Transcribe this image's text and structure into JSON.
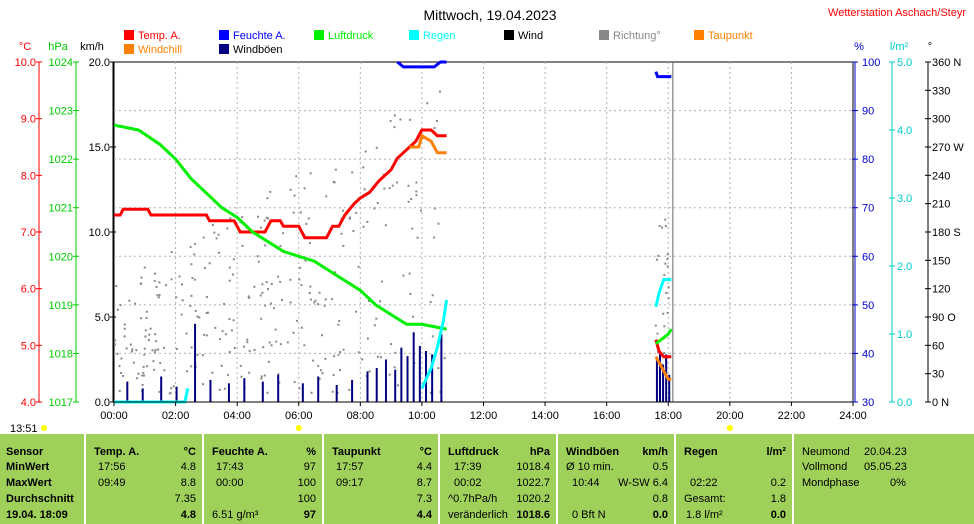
{
  "chart_data": {
    "type": "line",
    "title": "Mittwoch, 19.04.2023",
    "station": "Wetterstation Aschach/Steyr",
    "x_ticks": [
      "00:00",
      "02:00",
      "04:00",
      "06:00",
      "08:00",
      "10:00",
      "12:00",
      "14:00",
      "16:00",
      "18:00",
      "20:00",
      "22:00",
      "24:00"
    ],
    "time_marker": "13:51",
    "axes": {
      "temp": {
        "unit": "°C",
        "range": [
          4.0,
          10.0
        ],
        "ticks": [
          "10.0",
          "9.0",
          "8.0",
          "7.0",
          "6.0",
          "5.0",
          "4.0"
        ],
        "color": "#ff0000"
      },
      "pressure": {
        "unit": "hPa",
        "range": [
          1017,
          1024
        ],
        "ticks": [
          "1024",
          "1023",
          "1022",
          "1021",
          "1020",
          "1019",
          "1018",
          "1017"
        ],
        "color": "#00cc00"
      },
      "wind": {
        "unit": "km/h",
        "range": [
          0,
          20
        ],
        "ticks": [
          "20.0",
          "15.0",
          "10.0",
          "5.0",
          "0.0"
        ],
        "color": "#000000"
      },
      "humidity": {
        "unit": "%",
        "range": [
          30,
          100
        ],
        "ticks": [
          "100",
          "90",
          "80",
          "70",
          "60",
          "50",
          "40",
          "30"
        ],
        "color": "#0000cc"
      },
      "rain": {
        "unit": "l/m²",
        "range": [
          0,
          5
        ],
        "ticks": [
          "5.0",
          "4.0",
          "3.0",
          "2.0",
          "1.0",
          "0.0"
        ],
        "color": "#00cccc"
      },
      "direction": {
        "unit": "°",
        "ticks": [
          "360 N",
          "330",
          "300",
          "270 W",
          "240",
          "210",
          "180 S",
          "150",
          "120",
          "90 O",
          "60",
          "30",
          "0 N"
        ],
        "color": "#000000"
      }
    },
    "legend": [
      {
        "name": "Temp. A.",
        "color": "#ff0000"
      },
      {
        "name": "Feuchte A.",
        "color": "#0000ff"
      },
      {
        "name": "Luftdruck",
        "color": "#00ee00"
      },
      {
        "name": "Regen",
        "color": "#00ffff"
      },
      {
        "name": "Wind",
        "color": "#000000"
      },
      {
        "name": "Richtung°",
        "color": "#888888"
      },
      {
        "name": "Taupunkt",
        "color": "#ff8000"
      },
      {
        "name": "Windchill",
        "color": "#ff8000"
      },
      {
        "name": "Windböen",
        "color": "#000080"
      }
    ],
    "series": [
      {
        "name": "Temp. A.",
        "color": "#ff0000",
        "x": [
          0,
          0.2,
          0.3,
          1.1,
          1.2,
          2.3,
          2.4,
          3.0,
          3.1,
          3.9,
          4.1,
          4.9,
          5.1,
          5.4,
          5.5,
          6.0,
          6.2,
          6.9,
          7.1,
          7.3,
          7.5,
          7.8,
          8.0,
          8.3,
          8.6,
          8.8,
          9.0,
          9.2,
          9.4,
          9.6,
          9.8,
          10.0,
          10.3,
          10.5,
          10.8,
          17.6,
          17.7,
          17.85,
          18.0,
          18.1
        ],
        "y": [
          7.3,
          7.3,
          7.4,
          7.4,
          7.3,
          7.3,
          7.3,
          7.3,
          7.2,
          7.2,
          7.0,
          7.0,
          7.2,
          7.2,
          7.1,
          7.1,
          6.9,
          6.9,
          7.1,
          7.1,
          7.3,
          7.5,
          7.6,
          7.7,
          7.9,
          8.0,
          8.1,
          8.3,
          8.4,
          8.5,
          8.6,
          8.8,
          8.8,
          8.7,
          8.7,
          5.1,
          4.9,
          4.8,
          4.8,
          4.8
        ]
      },
      {
        "name": "Feuchte A.",
        "color": "#0000ff",
        "x": [
          0,
          9.2,
          9.4,
          10.4,
          10.6,
          10.8,
          17.6,
          17.65,
          18.1
        ],
        "y": [
          100,
          100,
          99,
          99,
          100,
          100,
          98,
          97,
          97
        ]
      },
      {
        "name": "Luftdruck",
        "color": "#00ee00",
        "x": [
          0,
          0.8,
          1.5,
          2.0,
          2.5,
          3.0,
          3.5,
          4.0,
          4.5,
          5.0,
          5.5,
          6.0,
          6.5,
          7.0,
          7.5,
          8.0,
          8.5,
          9.0,
          9.5,
          10.0,
          10.8,
          17.6,
          17.8,
          18.0,
          18.1
        ],
        "y": [
          1022.7,
          1022.6,
          1022.3,
          1022.0,
          1021.6,
          1021.3,
          1021.0,
          1020.8,
          1020.5,
          1020.3,
          1020.1,
          1020.0,
          1019.9,
          1019.7,
          1019.5,
          1019.3,
          1019.0,
          1018.8,
          1018.6,
          1018.6,
          1018.5,
          1018.2,
          1018.3,
          1018.4,
          1018.5
        ]
      },
      {
        "name": "Regen",
        "color": "#00ffff",
        "x": [
          0,
          2.3,
          2.4,
          10.0,
          10.1,
          10.3,
          10.5,
          10.7,
          10.8,
          17.6,
          17.7,
          17.85,
          18.0,
          18.1
        ],
        "y": [
          0,
          0,
          0.2,
          0.2,
          0.3,
          0.5,
          0.8,
          1.2,
          1.5,
          1.4,
          1.6,
          1.8,
          1.8,
          1.8
        ]
      },
      {
        "name": "Taupunkt",
        "color": "#ff8000",
        "x": [
          9.6,
          9.9,
          10.0,
          10.3,
          10.5,
          10.8,
          17.6,
          17.8,
          18.0,
          18.1
        ],
        "y": [
          8.5,
          8.5,
          8.7,
          8.6,
          8.4,
          8.4,
          4.8,
          4.6,
          4.4,
          4.4
        ]
      }
    ],
    "gusts": {
      "name": "Windböen",
      "color": "#000080",
      "x": [
        0.4,
        0.9,
        1.5,
        2.0,
        2.6,
        3.1,
        3.7,
        4.2,
        4.8,
        5.3,
        6.1,
        6.6,
        7.2,
        7.7,
        8.2,
        8.5,
        8.8,
        9.1,
        9.3,
        9.5,
        9.7,
        9.9,
        10.1,
        10.3,
        10.6,
        17.6,
        17.7,
        17.8,
        17.9,
        18.0
      ],
      "y": [
        1.2,
        0.8,
        1.5,
        0.9,
        4.6,
        1.3,
        1.1,
        1.4,
        1.2,
        1.6,
        1.1,
        1.5,
        1.0,
        1.3,
        1.8,
        2.0,
        2.5,
        1.9,
        3.2,
        2.7,
        4.1,
        3.3,
        3.0,
        2.8,
        4.0,
        2.5,
        3.0,
        2.2,
        2.8,
        1.6
      ]
    }
  },
  "table": {
    "columns": [
      {
        "header": "Sensor",
        "unit": ""
      },
      {
        "header": "Temp. A.",
        "unit": "°C"
      },
      {
        "header": "Feuchte A.",
        "unit": "%"
      },
      {
        "header": "Taupunkt",
        "unit": "°C"
      },
      {
        "header": "Luftdruck",
        "unit": "hPa"
      },
      {
        "header": "Windböen",
        "unit": "km/h"
      },
      {
        "header": "Regen",
        "unit": "l/m²"
      }
    ],
    "row_labels": [
      "MinWert",
      "MaxWert",
      "Durchschnitt",
      "19.04. 18:09"
    ],
    "temp": {
      "min_time": "17:56",
      "min": "4.8",
      "max_time": "09:49",
      "max": "8.8",
      "avg": "7.35",
      "cur": "4.8"
    },
    "hum": {
      "min_time": "17:43",
      "min": "97",
      "max_time": "00:00",
      "max": "100",
      "avg": "100",
      "abs": "6.51 g/m³",
      "cur": "97"
    },
    "dew": {
      "min_time": "17:57",
      "min": "4.4",
      "max_time": "09:17",
      "max": "8.7",
      "avg": "7.3",
      "cur": "4.4"
    },
    "press": {
      "min_time": "17:39",
      "min": "1018.4",
      "max_time": "00:02",
      "max": "1022.7",
      "avg_label": "^0.7hPa/h",
      "avg": "1020.2",
      "trend": "veränderlich",
      "cur": "1018.6"
    },
    "wind": {
      "r1_label": "Ø 10 min.",
      "r1": "0.5",
      "max_time": "10:44",
      "max_dir": "W-SW 6.4",
      "max": "",
      "avg": "0.8",
      "cur_label": "0 Bft N",
      "cur": "0.0"
    },
    "rain": {
      "r2_time": "02:22",
      "r2": "0.2",
      "total_label": "Gesamt:",
      "total": "1.8",
      "cur_label": "1.8 l/m²",
      "cur": "0.0"
    },
    "moon": {
      "new_label": "Neumond",
      "new": "20.04.23",
      "full_label": "Vollmond",
      "full": "05.05.23",
      "phase_label": "Mondphase",
      "phase": "0%"
    }
  }
}
